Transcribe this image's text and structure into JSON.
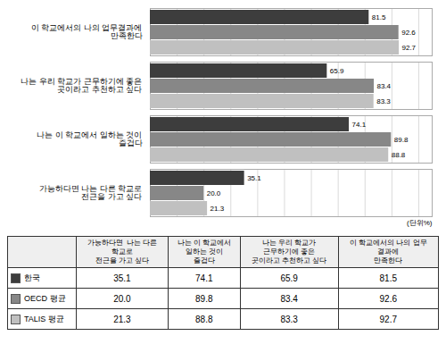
{
  "chart_data": [
    {
      "type": "bar",
      "orientation": "horizontal",
      "categories": [
        "이 학교에서의 나의 업무결과에\n만족한다",
        "나는 우리 학교가 근무하기에 좋은\n곳이라고 추천하고 싶다",
        "나는 이 학교에서 일하는 것이\n즐겁다",
        "가능하다면 나는 다른 학교로\n전근을 가고 싶다"
      ],
      "series": [
        {
          "name": "한국",
          "color": "#3d3d3d",
          "values": [
            81.5,
            65.9,
            74.1,
            35.1
          ]
        },
        {
          "name": "OECD 평균",
          "color": "#878787",
          "values": [
            92.6,
            83.4,
            89.8,
            20.0
          ],
          "value_labels": [
            "92.6",
            "83.4",
            "89.8",
            "20.0"
          ]
        },
        {
          "name": "TALIS 평균",
          "color": "#c0c0c0",
          "values": [
            92.7,
            83.3,
            88.8,
            21.3
          ]
        }
      ],
      "xlim": [
        0,
        105
      ],
      "xticks": [
        0,
        10,
        20,
        30,
        40,
        50,
        60,
        70,
        80,
        90,
        100
      ],
      "grid": true,
      "tick_labels": "y",
      "data_labels": true,
      "annotation": "(단위%)"
    },
    {
      "type": "table",
      "categories": [
        "가능하다면  나는 다른\n학교로\n전근을 가고 싶다",
        "나는 이 학교에서\n일하는 것이\n즐겁다",
        "나는 우리 학교가\n근무하기에 좋은\n곳이라고 추천하고 싶다",
        "이 학교에서의 나의 업무\n결과에\n만족한다"
      ],
      "series": [
        {
          "name": "한국",
          "color": "#3d3d3d",
          "values": [
            35.1,
            74.1,
            65.9,
            81.5
          ]
        },
        {
          "name": "OECD 평균",
          "color": "#878787",
          "values": [
            20.0,
            89.8,
            83.4,
            92.6
          ],
          "value_labels": [
            "20.0",
            "89.8",
            "83.4",
            "92.6"
          ]
        },
        {
          "name": "TALIS 평균",
          "color": "#c0c0c0",
          "values": [
            21.3,
            88.8,
            83.3,
            92.7
          ]
        }
      ]
    }
  ]
}
